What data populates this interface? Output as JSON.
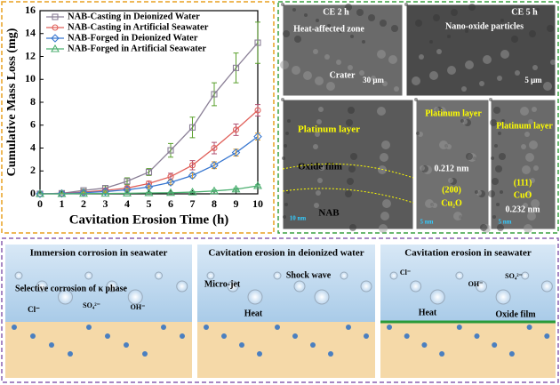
{
  "chart_data": {
    "type": "line",
    "x_label": "Cavitation Erosion Time (h)",
    "y_label": "Cumulative Mass Loss (mg)",
    "x": [
      0,
      1,
      2,
      3,
      4,
      5,
      6,
      7,
      8,
      9,
      10
    ],
    "xlim": [
      0,
      10
    ],
    "xticks": [
      0,
      1,
      2,
      3,
      4,
      5,
      6,
      7,
      8,
      9,
      10
    ],
    "ylim": [
      0,
      16
    ],
    "yticks": [
      0,
      2,
      4,
      6,
      8,
      10,
      12,
      14,
      16
    ],
    "legend": "top-left",
    "series": [
      {
        "name": "NAB-Casting in Deionized Water",
        "color": "#8a7f96",
        "error_color": "#5aa02c",
        "marker": "square",
        "values": [
          0,
          0.05,
          0.3,
          0.5,
          1.1,
          1.9,
          3.8,
          5.8,
          8.7,
          11.0,
          13.2
        ],
        "errors": [
          0,
          0.05,
          0.1,
          0.2,
          0.3,
          0.3,
          0.6,
          0.9,
          1.0,
          1.3,
          1.8
        ]
      },
      {
        "name": "NAB-Casting in Artificial Seawater",
        "color": "#e0605a",
        "error_color": "#b05070",
        "marker": "circle",
        "values": [
          0,
          0.05,
          0.15,
          0.3,
          0.5,
          0.9,
          1.5,
          2.5,
          4.0,
          5.6,
          7.3
        ],
        "errors": [
          0,
          0,
          0.05,
          0.1,
          0.15,
          0.2,
          0.3,
          0.4,
          0.5,
          0.5,
          0.5
        ]
      },
      {
        "name": "NAB-Forged in Deionized Water",
        "color": "#3a78d0",
        "error_color": "#e8a020",
        "marker": "diamond",
        "values": [
          0,
          0.03,
          0.1,
          0.2,
          0.35,
          0.6,
          1.0,
          1.6,
          2.5,
          3.6,
          5.0
        ],
        "errors": [
          0,
          0,
          0.05,
          0.05,
          0.1,
          0.1,
          0.2,
          0.2,
          0.3,
          0.3,
          0.3
        ]
      },
      {
        "name": "NAB-Forged in Artificial Seawater",
        "color": "#4caf70",
        "error_color": "#4caf70",
        "marker": "triangle",
        "values": [
          0,
          0,
          0.02,
          0.03,
          0.05,
          0.08,
          0.1,
          0.15,
          0.25,
          0.4,
          0.7
        ],
        "errors": [
          0,
          0,
          0.02,
          0.02,
          0.03,
          0.05,
          0.05,
          0.05,
          0.08,
          0.1,
          0.1
        ]
      }
    ]
  },
  "micrographs": [
    {
      "labels": [
        "CE 2 h",
        "Heat-affected zone",
        "Crater",
        "30 μm"
      ]
    },
    {
      "labels": [
        "CE 5 h",
        "Nano-oxide particles",
        "5 μm"
      ]
    },
    {
      "labels": [
        "Platinum layer",
        "Oxide film",
        "NAB",
        "10 nm"
      ]
    },
    {
      "labels": [
        "Platinum layer",
        "0.212 nm",
        "(200)",
        "Cu₂O",
        "5 nm"
      ]
    },
    {
      "labels": [
        "Platinum layer",
        "(111)",
        "CuO",
        "0.232 nm",
        "5 nm"
      ]
    }
  ],
  "schematics": [
    {
      "title": "Immersion corrosion in seawater",
      "labels": [
        "Selective corrosion of κ phase",
        "Cl⁻",
        "SO₄²⁻",
        "OH⁻"
      ]
    },
    {
      "title": "Cavitation erosion in deionized water",
      "labels": [
        "Micro-jet",
        "Heat",
        "Shock wave"
      ]
    },
    {
      "title": "Cavitation erosion in seawater",
      "labels": [
        "Cl⁻",
        "OH⁻",
        "SO₄²⁻",
        "Heat",
        "Oxide film"
      ]
    }
  ]
}
